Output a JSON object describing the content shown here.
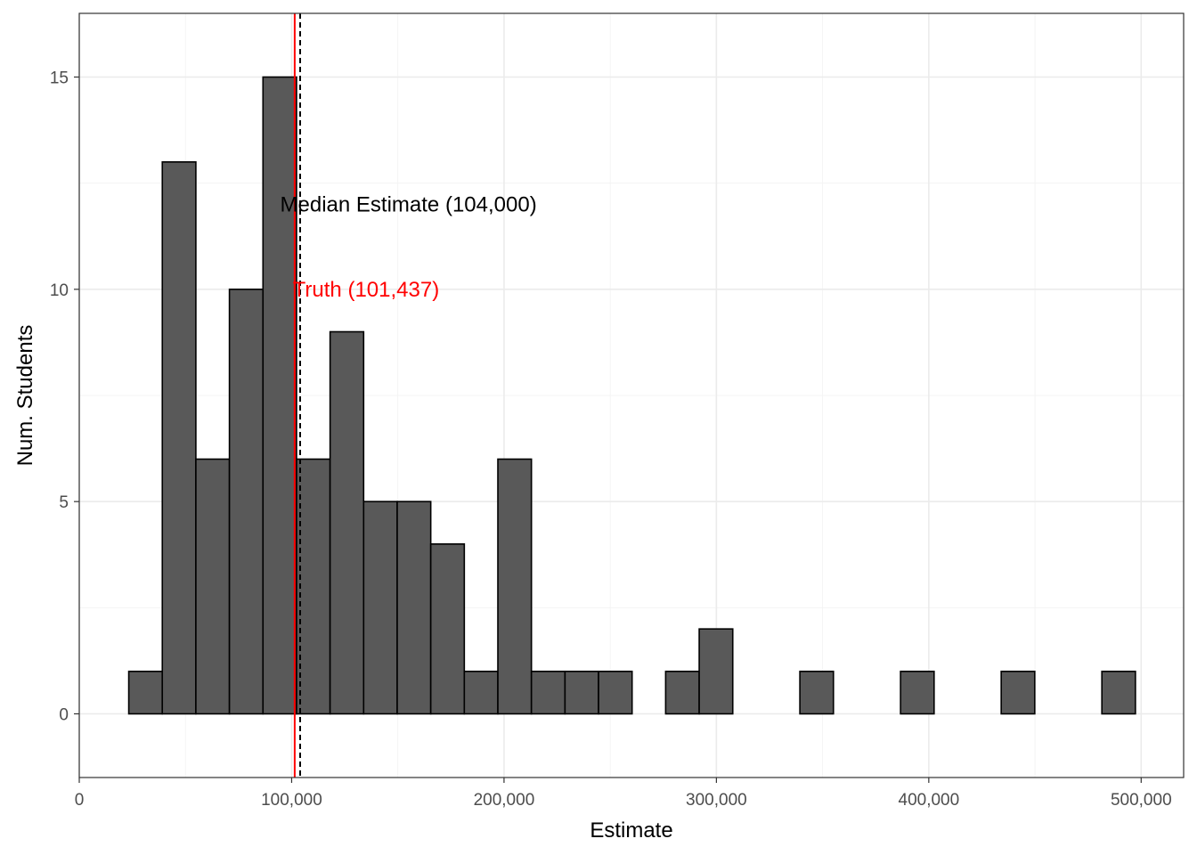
{
  "chart_data": {
    "type": "bar",
    "subtype": "histogram",
    "xlabel": "Estimate",
    "ylabel": "Num. Students",
    "xlim": [
      0,
      520000
    ],
    "ylim": [
      -1.5,
      16.5
    ],
    "x_ticks": [
      0,
      100000,
      200000,
      300000,
      400000,
      500000
    ],
    "x_tick_labels": [
      "0",
      "100,000",
      "200,000",
      "300,000",
      "400,000",
      "500,000"
    ],
    "y_ticks": [
      0,
      5,
      10,
      15
    ],
    "y_tick_labels": [
      "0",
      "5",
      "10",
      "15"
    ],
    "grid": true,
    "bin_width": 15800,
    "bin_start": 23300,
    "counts": [
      1,
      13,
      6,
      10,
      15,
      6,
      9,
      5,
      5,
      4,
      1,
      6,
      1,
      1,
      1,
      0,
      1,
      2,
      0,
      0,
      1,
      0,
      0,
      1,
      0,
      0,
      1,
      0,
      0,
      1
    ],
    "bar_fill": "#595959",
    "bar_stroke": "#000000",
    "reference_lines": [
      {
        "name": "truth",
        "x": 101437,
        "color": "#ff0000",
        "style": "solid"
      },
      {
        "name": "median",
        "x": 104000,
        "color": "#000000",
        "style": "dashed"
      }
    ],
    "annotations": [
      {
        "name": "median-label",
        "text": "Median Estimate (104,000)",
        "x": 155000,
        "y": 12,
        "color": "#000000"
      },
      {
        "name": "truth-label",
        "text": "Truth (101,437)",
        "x": 135000,
        "y": 10,
        "color": "#ff0000"
      }
    ]
  }
}
